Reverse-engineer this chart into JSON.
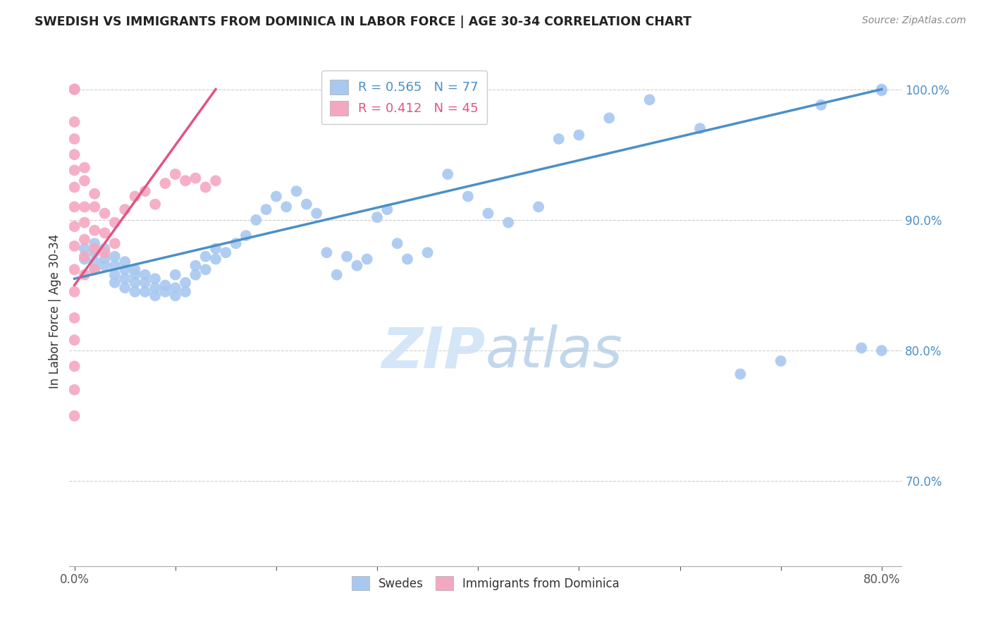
{
  "title": "SWEDISH VS IMMIGRANTS FROM DOMINICA IN LABOR FORCE | AGE 30-34 CORRELATION CHART",
  "source": "Source: ZipAtlas.com",
  "ylabel": "In Labor Force | Age 30-34",
  "xlim": [
    -0.005,
    0.82
  ],
  "ylim": [
    0.635,
    1.025
  ],
  "xticks": [
    0.0,
    0.1,
    0.2,
    0.3,
    0.4,
    0.5,
    0.6,
    0.7,
    0.8
  ],
  "xticklabels": [
    "0.0%",
    "",
    "",
    "",
    "",
    "",
    "",
    "",
    "80.0%"
  ],
  "ytick_positions": [
    0.7,
    0.8,
    0.9,
    1.0
  ],
  "yticklabels": [
    "70.0%",
    "80.0%",
    "90.0%",
    "100.0%"
  ],
  "swedes_R": 0.565,
  "swedes_N": 77,
  "dominica_R": 0.412,
  "dominica_N": 45,
  "swedes_color": "#A8C8F0",
  "dominica_color": "#F4A8C0",
  "swedes_line_color": "#4A90C8",
  "dominica_line_color": "#E05580",
  "watermark_color": "#D0E4F7",
  "swedes_x": [
    0.01,
    0.01,
    0.02,
    0.02,
    0.02,
    0.02,
    0.03,
    0.03,
    0.03,
    0.04,
    0.04,
    0.04,
    0.04,
    0.05,
    0.05,
    0.05,
    0.05,
    0.06,
    0.06,
    0.06,
    0.06,
    0.07,
    0.07,
    0.07,
    0.08,
    0.08,
    0.08,
    0.09,
    0.09,
    0.1,
    0.1,
    0.1,
    0.11,
    0.11,
    0.12,
    0.12,
    0.13,
    0.13,
    0.14,
    0.14,
    0.15,
    0.16,
    0.17,
    0.18,
    0.19,
    0.2,
    0.21,
    0.22,
    0.23,
    0.24,
    0.25,
    0.26,
    0.27,
    0.28,
    0.29,
    0.3,
    0.31,
    0.32,
    0.33,
    0.35,
    0.37,
    0.39,
    0.41,
    0.43,
    0.46,
    0.48,
    0.5,
    0.53,
    0.57,
    0.62,
    0.66,
    0.7,
    0.74,
    0.78,
    0.8,
    0.8,
    0.8
  ],
  "swedes_y": [
    0.87,
    0.878,
    0.882,
    0.875,
    0.868,
    0.862,
    0.878,
    0.87,
    0.865,
    0.872,
    0.865,
    0.858,
    0.852,
    0.868,
    0.862,
    0.855,
    0.848,
    0.862,
    0.858,
    0.852,
    0.845,
    0.858,
    0.852,
    0.845,
    0.855,
    0.848,
    0.842,
    0.85,
    0.845,
    0.848,
    0.842,
    0.858,
    0.852,
    0.845,
    0.858,
    0.865,
    0.862,
    0.872,
    0.87,
    0.878,
    0.875,
    0.882,
    0.888,
    0.9,
    0.908,
    0.918,
    0.91,
    0.922,
    0.912,
    0.905,
    0.875,
    0.858,
    0.872,
    0.865,
    0.87,
    0.902,
    0.908,
    0.882,
    0.87,
    0.875,
    0.935,
    0.918,
    0.905,
    0.898,
    0.91,
    0.962,
    0.965,
    0.978,
    0.992,
    0.97,
    0.782,
    0.792,
    0.988,
    0.802,
    0.8,
    0.999,
    1.0
  ],
  "dominica_x": [
    0.0,
    0.0,
    0.0,
    0.0,
    0.0,
    0.0,
    0.0,
    0.0,
    0.0,
    0.0,
    0.0,
    0.0,
    0.0,
    0.0,
    0.0,
    0.0,
    0.0,
    0.0,
    0.01,
    0.01,
    0.01,
    0.01,
    0.01,
    0.02,
    0.02,
    0.02,
    0.03,
    0.03,
    0.03,
    0.04,
    0.04,
    0.05,
    0.06,
    0.07,
    0.08,
    0.09,
    0.1,
    0.11,
    0.12,
    0.13,
    0.14,
    0.01,
    0.02,
    0.01,
    0.02
  ],
  "dominica_y": [
    1.0,
    1.0,
    1.0,
    0.975,
    0.962,
    0.95,
    0.938,
    0.925,
    0.91,
    0.895,
    0.88,
    0.862,
    0.845,
    0.825,
    0.808,
    0.788,
    0.77,
    0.75,
    0.91,
    0.898,
    0.885,
    0.872,
    0.858,
    0.892,
    0.878,
    0.862,
    0.905,
    0.89,
    0.875,
    0.898,
    0.882,
    0.908,
    0.918,
    0.922,
    0.912,
    0.928,
    0.935,
    0.93,
    0.932,
    0.925,
    0.93,
    0.94,
    0.92,
    0.93,
    0.91
  ]
}
